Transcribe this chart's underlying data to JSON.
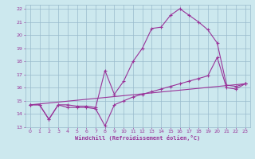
{
  "xlabel": "Windchill (Refroidissement éolien,°C)",
  "bg_color": "#cce8ee",
  "grid_color": "#99bbcc",
  "line_color": "#993399",
  "xlim": [
    -0.5,
    23.5
  ],
  "ylim": [
    13,
    22.3
  ],
  "xticks": [
    0,
    1,
    2,
    3,
    4,
    5,
    6,
    7,
    8,
    9,
    10,
    11,
    12,
    13,
    14,
    15,
    16,
    17,
    18,
    19,
    20,
    21,
    22,
    23
  ],
  "yticks": [
    13,
    14,
    15,
    16,
    17,
    18,
    19,
    20,
    21,
    22
  ],
  "curve1_x": [
    0,
    1,
    2,
    3,
    4,
    5,
    6,
    7,
    8,
    9,
    10,
    11,
    12,
    13,
    14,
    15,
    16,
    17,
    18,
    19,
    20,
    21,
    22,
    23
  ],
  "curve1_y": [
    14.7,
    14.7,
    13.6,
    14.7,
    14.7,
    14.6,
    14.6,
    14.5,
    17.3,
    15.5,
    16.5,
    18.0,
    19.0,
    20.5,
    20.6,
    21.5,
    22.0,
    21.5,
    21.0,
    20.4,
    19.4,
    16.2,
    16.1,
    16.3
  ],
  "curve2_x": [
    0,
    1,
    2,
    3,
    4,
    5,
    6,
    7,
    8,
    9,
    10,
    11,
    12,
    13,
    14,
    15,
    16,
    17,
    18,
    19,
    20,
    21,
    22,
    23
  ],
  "curve2_y": [
    14.7,
    14.7,
    13.6,
    14.7,
    14.5,
    14.5,
    14.5,
    14.4,
    13.1,
    14.7,
    15.0,
    15.3,
    15.5,
    15.7,
    15.9,
    16.1,
    16.3,
    16.5,
    16.7,
    16.9,
    18.3,
    16.0,
    15.9,
    16.3
  ],
  "curve3_x": [
    0,
    23
  ],
  "curve3_y": [
    14.7,
    16.3
  ]
}
